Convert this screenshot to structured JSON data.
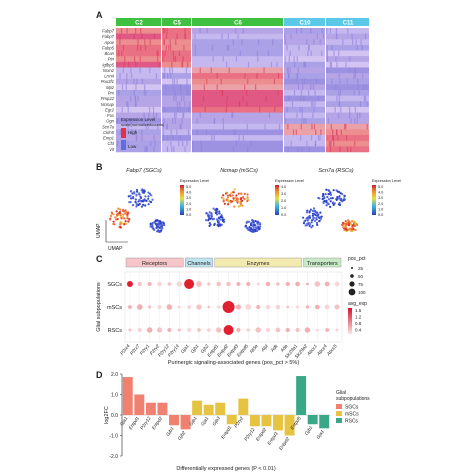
{
  "panels": {
    "a": "A",
    "b": "B",
    "c": "C",
    "d": "D"
  },
  "heatmap": {
    "clusters": [
      {
        "name": "C2",
        "color": "#40c040"
      },
      {
        "name": "C5",
        "color": "#40c040"
      },
      {
        "name": "C6",
        "color": "#40c040"
      },
      {
        "name": "C10",
        "color": "#5bc8e8"
      },
      {
        "name": "C11",
        "color": "#5bc8e8"
      }
    ],
    "genes": [
      "Fabp7",
      "Fabp7",
      "Apoe",
      "Fabp5",
      "Bcan",
      "Ptn",
      "Igfbp5",
      "Nrxn2",
      "Lrrn4",
      "Pou3f1",
      "Mpz",
      "Prx",
      "Pmp22",
      "Ncmap",
      "Egr2",
      "Fos",
      "Ogn",
      "Scn7a",
      "Cldn5",
      "Emp1",
      "Cfd",
      "Vit"
    ],
    "legend_title": "Expression Level",
    "legend_subtitle": "scale(normalizedcounts)",
    "legend_high": "High",
    "legend_low": "Low"
  },
  "umap": {
    "plots": [
      {
        "title": "Fabp7 (SGCs)",
        "ticks": [
          "5.0",
          "4.0",
          "3.0",
          "2.0",
          "1.0",
          "0.0"
        ]
      },
      {
        "title": "Ncmap (mSCs)",
        "ticks": [
          "4.0",
          "3.0",
          "2.0",
          "1.0",
          "0.0"
        ]
      },
      {
        "title": "Scn7a (RSCs)",
        "ticks": [
          "5.0",
          "4.0",
          "3.0",
          "2.0",
          "1.0",
          "0.0"
        ]
      }
    ],
    "legend_title": "Expression Level",
    "axis_x": "UMAP",
    "axis_y": "UMAP"
  },
  "dotplot": {
    "groups": [
      {
        "name": "Receptors",
        "color": "#f6c5c8"
      },
      {
        "name": "Channels",
        "color": "#bfe4f2"
      },
      {
        "name": "Enzymes",
        "color": "#f3eab0"
      },
      {
        "name": "Transporters",
        "color": "#c8eac6"
      }
    ],
    "rows": [
      "SGCs",
      "mSCs",
      "RSCs"
    ],
    "genes": [
      "P2rx4",
      "P2rx7",
      "P2ry1",
      "P2ry2",
      "P2ry12",
      "P2ry14",
      "Gja1",
      "Gjb1",
      "Gjb2",
      "Entpd1",
      "Entpd2",
      "Entpd3",
      "Entpd5",
      "Nt5e",
      "Alpl",
      "Adk",
      "Ada",
      "Slc29a1",
      "Slc29a2",
      "Abcc1",
      "Abcc4",
      "Abcc5"
    ],
    "ylabel": "Glial subpopulations",
    "xlabel": "Purinergic signaling-associated genes (pos_pct > 5%)",
    "size_legend_title": "pos_pct",
    "size_legend_values": [
      "25",
      "50",
      "75",
      "100"
    ],
    "color_legend_title": "avg_exp",
    "color_legend_values": [
      "1.6",
      "1.2",
      "0.8",
      "0.4"
    ]
  },
  "chart_data": {
    "type": "bar",
    "categories": [
      "Gja1",
      "Entpd1",
      "P2ry12",
      "Entpd2",
      "Gjb1",
      "Gjb2",
      "Gjb1",
      "Gja1",
      "Gjb3",
      "Entpd1",
      "P2ry2",
      "P2ry12",
      "Entpd2",
      "Entpd3",
      "Entpd2",
      "Entpd5",
      "Gjb1",
      "Gja1"
    ],
    "values": [
      1.85,
      1.0,
      0.6,
      0.6,
      -0.5,
      -0.7,
      0.7,
      0.5,
      0.6,
      -0.45,
      0.8,
      -0.55,
      -0.55,
      -0.75,
      -1.0,
      1.9,
      -0.45,
      -0.65
    ],
    "colors": [
      "#f08070",
      "#f08070",
      "#f08070",
      "#f08070",
      "#f08070",
      "#f08070",
      "#e6c340",
      "#e6c340",
      "#e6c340",
      "#e6c340",
      "#e6c340",
      "#e6c340",
      "#e6c340",
      "#e6c340",
      "#e6c340",
      "#3aa886",
      "#3aa886",
      "#3aa886"
    ],
    "ylabel": "log2FC",
    "xlabel": "Differentially expressed genes (P < 0.01)",
    "yticks": [
      "2.0",
      "1.0",
      "0.0",
      "-1.0",
      "-2.0"
    ],
    "ylim": [
      -2.0,
      2.0
    ],
    "legend_title": "Glial subpopulations",
    "legend": [
      {
        "name": "SGCs",
        "color": "#f08070"
      },
      {
        "name": "mSCs",
        "color": "#e6c340"
      },
      {
        "name": "RSCs",
        "color": "#3aa886"
      }
    ]
  }
}
